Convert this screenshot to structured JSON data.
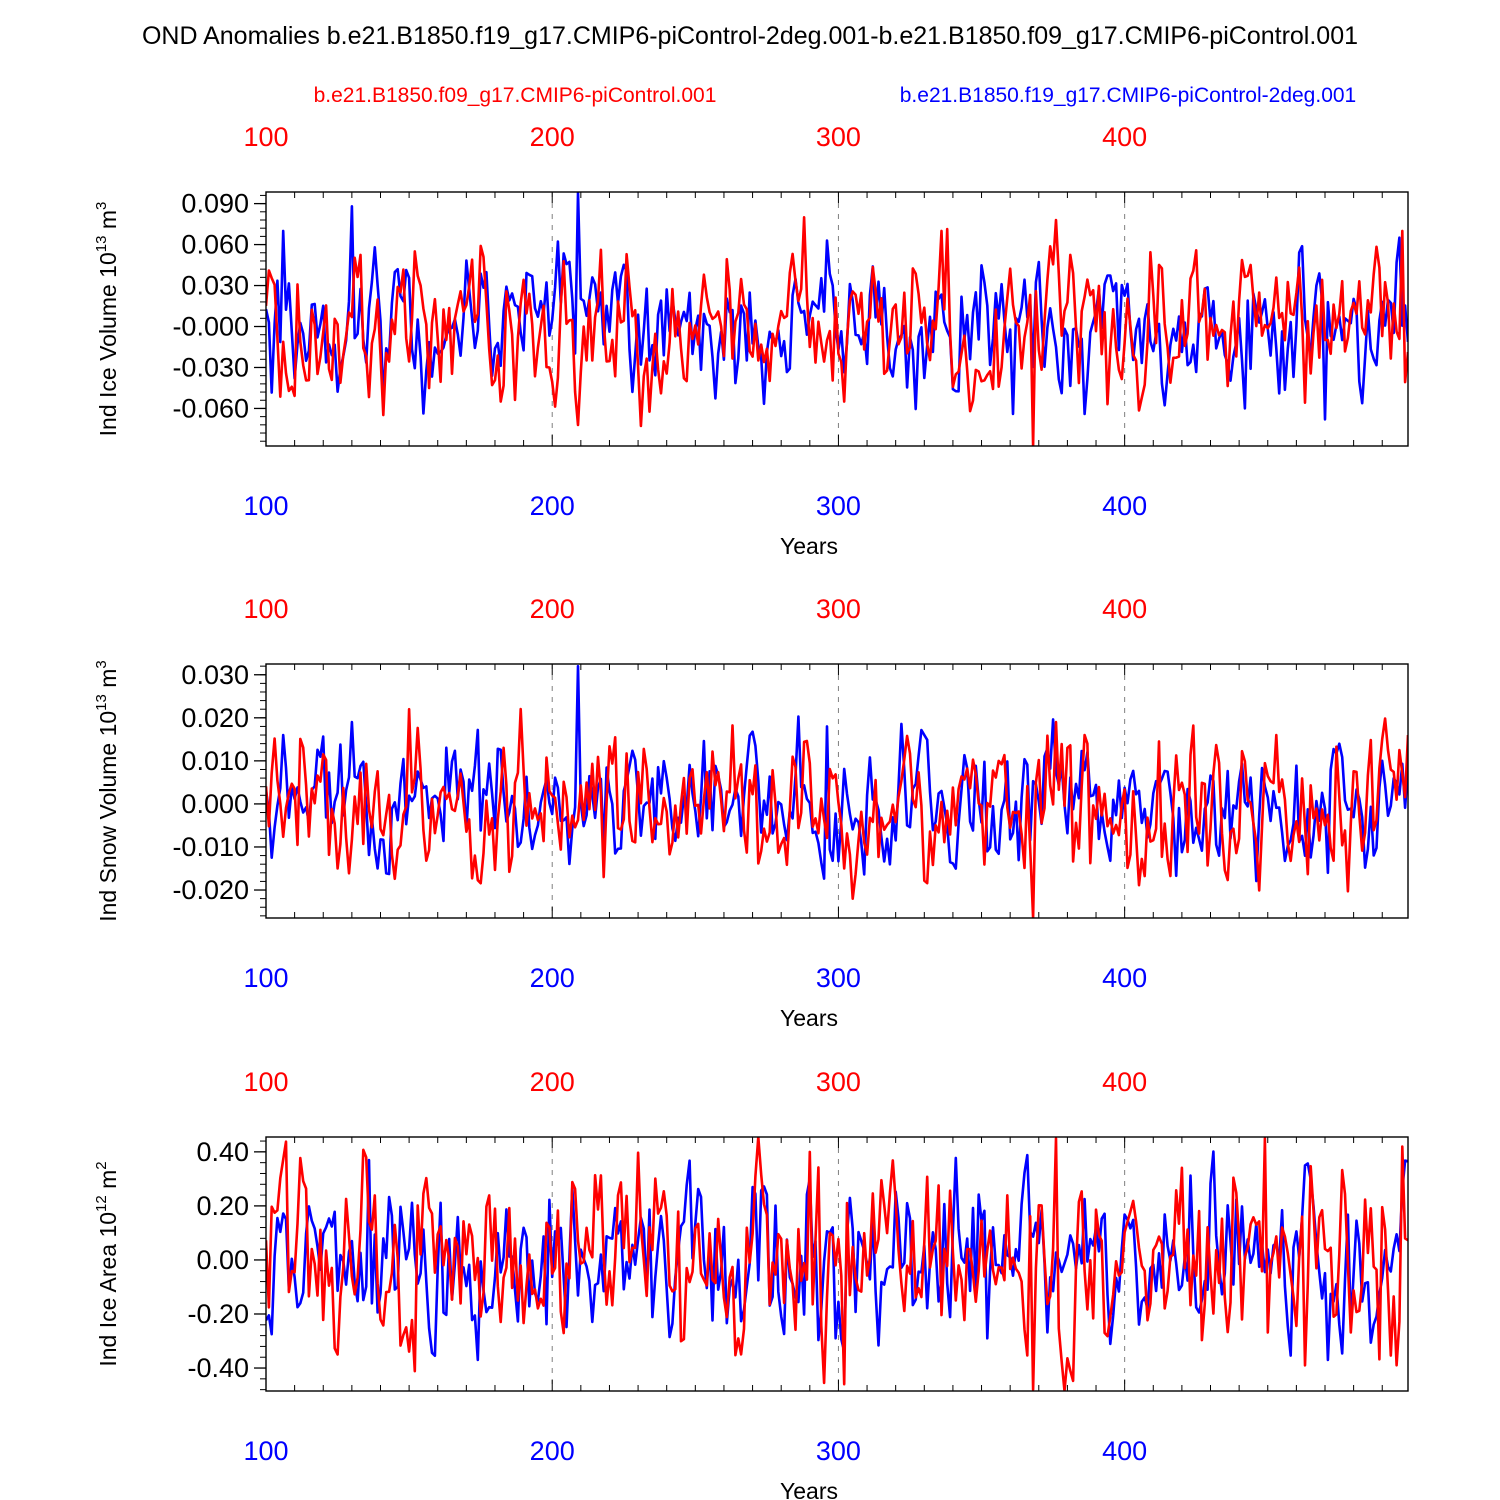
{
  "figure": {
    "title": "OND Anomalies b.e21.B1850.f19_g17.CMIP6-piControl-2deg.001-b.e21.B1850.f09_g17.CMIP6-piControl.001",
    "legend_red": "b.e21.B1850.f09_g17.CMIP6-piControl.001",
    "legend_blue": "b.e21.B1850.f19_g17.CMIP6-piControl-2deg.001"
  },
  "colors": {
    "red": "#ff0000",
    "blue": "#0000ff",
    "axis": "#000000",
    "grid": "#808080"
  },
  "chart_data": [
    {
      "type": "line",
      "ylabel_main": "Ind Ice Volume 10",
      "ylabel_exp": "13",
      "ylabel_unit": " m",
      "ylabel_unit_exp": "3",
      "xlabel": "Years",
      "xlim": [
        100,
        499
      ],
      "ylim": [
        -0.0875,
        0.0985
      ],
      "xticks": [
        100,
        200,
        300,
        400
      ],
      "xtick_labels": [
        "100",
        "200",
        "300",
        "400"
      ],
      "yticks": [
        -0.06,
        -0.03,
        0.0,
        0.03,
        0.06,
        0.09
      ],
      "ytick_labels": [
        "-0.060",
        "-0.030",
        "-0.000",
        "0.030",
        "0.060",
        "0.090"
      ],
      "series": [
        {
          "name": "b.e21.B1850.f09_g17.CMIP6-piControl.001",
          "color": "red",
          "amp": 0.024,
          "events": [
            [
              152,
              0.055
            ],
            [
              182,
              -0.055
            ],
            [
              288,
              0.08
            ],
            [
              302,
              -0.055
            ],
            [
              336,
              0.07
            ],
            [
              368,
              -0.088
            ],
            [
              376,
              0.078
            ],
            [
              497,
              0.07
            ]
          ]
        },
        {
          "name": "b.e21.B1850.f19_g17.CMIP6-piControl-2deg.001",
          "color": "blue",
          "amp": 0.022,
          "events": [
            [
              106,
              0.07
            ],
            [
              130,
              0.088
            ],
            [
              209,
              0.098
            ],
            [
              296,
              0.063
            ],
            [
              361,
              -0.064
            ],
            [
              442,
              -0.06
            ],
            [
              470,
              -0.068
            ]
          ]
        }
      ]
    },
    {
      "type": "line",
      "ylabel_main": "Ind Snow Volume 10",
      "ylabel_exp": "13",
      "ylabel_unit": " m",
      "ylabel_unit_exp": "3",
      "xlabel": "Years",
      "xlim": [
        100,
        499
      ],
      "ylim": [
        -0.0265,
        0.0325
      ],
      "xticks": [
        100,
        200,
        300,
        400
      ],
      "xtick_labels": [
        "100",
        "200",
        "300",
        "400"
      ],
      "yticks": [
        -0.02,
        -0.01,
        0.0,
        0.01,
        0.02,
        0.03
      ],
      "ytick_labels": [
        "-0.020",
        "-0.010",
        "0.000",
        "0.010",
        "0.020",
        "0.030"
      ],
      "series": [
        {
          "name": "b.e21.B1850.f09_g17.CMIP6-piControl.001",
          "color": "red",
          "amp": 0.0075,
          "events": [
            [
              150,
              0.022
            ],
            [
              125,
              -0.015
            ],
            [
              218,
              -0.017
            ],
            [
              302,
              -0.015
            ],
            [
              368,
              -0.0265
            ],
            [
              376,
              0.019
            ],
            [
              499,
              0.016
            ]
          ]
        },
        {
          "name": "b.e21.B1850.f19_g17.CMIP6-piControl-2deg.001",
          "color": "blue",
          "amp": 0.0065,
          "events": [
            [
              106,
              0.016
            ],
            [
              130,
              0.019
            ],
            [
              209,
              0.032
            ],
            [
              296,
              0.018
            ],
            [
              471,
              -0.016
            ]
          ]
        }
      ]
    },
    {
      "type": "line",
      "ylabel_main": "Ind Ice Area 10",
      "ylabel_exp": "12",
      "ylabel_unit": " m",
      "ylabel_unit_exp": "2",
      "xlabel": "Years",
      "xlim": [
        100,
        499
      ],
      "ylim": [
        -0.485,
        0.455
      ],
      "xticks": [
        100,
        200,
        300,
        400
      ],
      "xtick_labels": [
        "100",
        "200",
        "300",
        "400"
      ],
      "yticks": [
        -0.4,
        -0.2,
        0.0,
        0.2,
        0.4
      ],
      "ytick_labels": [
        "-0.40",
        "-0.20",
        "0.00",
        "0.20",
        "0.40"
      ],
      "series": [
        {
          "name": "b.e21.B1850.f09_g17.CMIP6-piControl.001",
          "color": "red",
          "amp": 0.16,
          "events": [
            [
              125,
              -0.35
            ],
            [
              135,
              0.38
            ],
            [
              290,
              0.4
            ],
            [
              302,
              -0.46
            ],
            [
              368,
              -0.48
            ],
            [
              376,
              0.45
            ],
            [
              449,
              0.45
            ],
            [
              463,
              -0.39
            ],
            [
              497,
              0.42
            ]
          ]
        },
        {
          "name": "b.e21.B1850.f19_g17.CMIP6-piControl-2deg.001",
          "color": "blue",
          "amp": 0.14,
          "events": [
            [
              136,
              0.37
            ],
            [
              174,
              -0.37
            ],
            [
              270,
              0.27
            ],
            [
              299,
              -0.29
            ],
            [
              352,
              -0.29
            ],
            [
              471,
              -0.37
            ]
          ]
        }
      ]
    }
  ]
}
